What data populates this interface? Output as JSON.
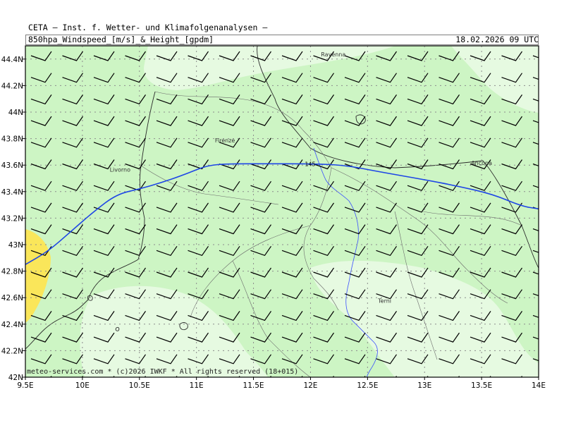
{
  "header": {
    "title_line1": "CETA — Inst. f. Wetter- und Klimafolgenanalysen —",
    "title_line2": "850hpa_Windspeed_[m/s]_&_Height_[gpdm]",
    "datetime": "18.02.2026 09 UTC"
  },
  "map": {
    "region": "Central Italy",
    "variable": "850 hPa wind speed and geopotential height",
    "lon_ticks": [
      "9.5E",
      "10E",
      "10.5E",
      "11E",
      "11.5E",
      "12E",
      "12.5E",
      "13E",
      "13.5E",
      "14E"
    ],
    "lat_ticks": [
      "44.4N",
      "44.2N",
      "44N",
      "43.8N",
      "43.6N",
      "43.4N",
      "43.2N",
      "43N",
      "42.8N",
      "42.6N",
      "42.4N",
      "42.2N",
      "42N"
    ],
    "cities": [
      {
        "name": "Ravenna",
        "lon": 12.2,
        "lat": 44.42
      },
      {
        "name": "Firenze",
        "lon": 11.25,
        "lat": 43.77
      },
      {
        "name": "Livorno",
        "lon": 10.33,
        "lat": 43.55
      },
      {
        "name": "Ancona",
        "lon": 13.5,
        "lat": 43.6
      },
      {
        "name": "Terni",
        "lon": 12.65,
        "lat": 42.56
      }
    ],
    "contour": {
      "label": "145",
      "level_gpdm": 145,
      "points": [
        [
          9.5,
          42.85
        ],
        [
          9.7,
          42.95
        ],
        [
          9.9,
          43.1
        ],
        [
          10.1,
          43.25
        ],
        [
          10.3,
          43.38
        ],
        [
          10.5,
          43.42
        ],
        [
          10.7,
          43.47
        ],
        [
          10.9,
          43.53
        ],
        [
          11.1,
          43.6
        ],
        [
          11.3,
          43.61
        ],
        [
          11.6,
          43.61
        ],
        [
          12.0,
          43.61
        ],
        [
          12.3,
          43.6
        ],
        [
          12.6,
          43.55
        ],
        [
          13.0,
          43.49
        ],
        [
          13.3,
          43.44
        ],
        [
          13.6,
          43.38
        ],
        [
          13.85,
          43.29
        ],
        [
          14.0,
          43.27
        ]
      ]
    },
    "wind_barb": {
      "direction_deg": 270,
      "speed_ms": 10
    },
    "colors": {
      "light_green": "#e6fae1",
      "mid_green": "#cdf5c4",
      "yellow": "#fae65a",
      "contour": "#1e46e6",
      "river": "#3c50ff",
      "coast": "#2a2a2a",
      "grid": "#8c8c8c"
    }
  },
  "credit": "meteo-services.com * (c)2026 IWKF * All rights reserved (18+015)"
}
